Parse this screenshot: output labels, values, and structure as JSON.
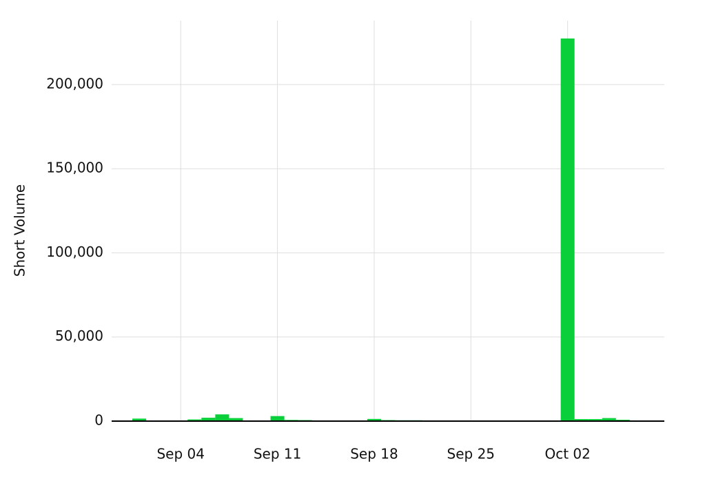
{
  "chart_data": {
    "type": "bar",
    "y_label": "Short Volume",
    "x": [
      "Sep 01",
      "Sep 05",
      "Sep 06",
      "Sep 07",
      "Sep 08",
      "Sep 11",
      "Sep 12",
      "Sep 13",
      "Sep 14",
      "Sep 15",
      "Sep 18",
      "Sep 19",
      "Sep 20",
      "Sep 21",
      "Sep 22",
      "Sep 25",
      "Sep 26",
      "Sep 27",
      "Sep 28",
      "Sep 29",
      "Oct 02",
      "Oct 03",
      "Oct 04",
      "Oct 05",
      "Oct 06"
    ],
    "values": [
      1500,
      1000,
      2000,
      4000,
      1800,
      3000,
      700,
      600,
      300,
      200,
      1300,
      600,
      500,
      500,
      300,
      300,
      300,
      200,
      400,
      100,
      227400,
      1200,
      1200,
      1800,
      800
    ],
    "color": "#0acf3a",
    "xlim": [
      "Aug 30",
      "Oct 09"
    ],
    "xticks": [
      "Sep 04",
      "Sep 11",
      "Sep 18",
      "Sep 25",
      "Oct 02"
    ],
    "ylim": [
      0,
      238000
    ],
    "yticks": [
      {
        "value": 0,
        "label": "0"
      },
      {
        "value": 50000,
        "label": "50,000"
      },
      {
        "value": 100000,
        "label": "100,000"
      },
      {
        "value": 150000,
        "label": "150,000"
      },
      {
        "value": 200000,
        "label": "200,000"
      }
    ],
    "grid": true
  }
}
